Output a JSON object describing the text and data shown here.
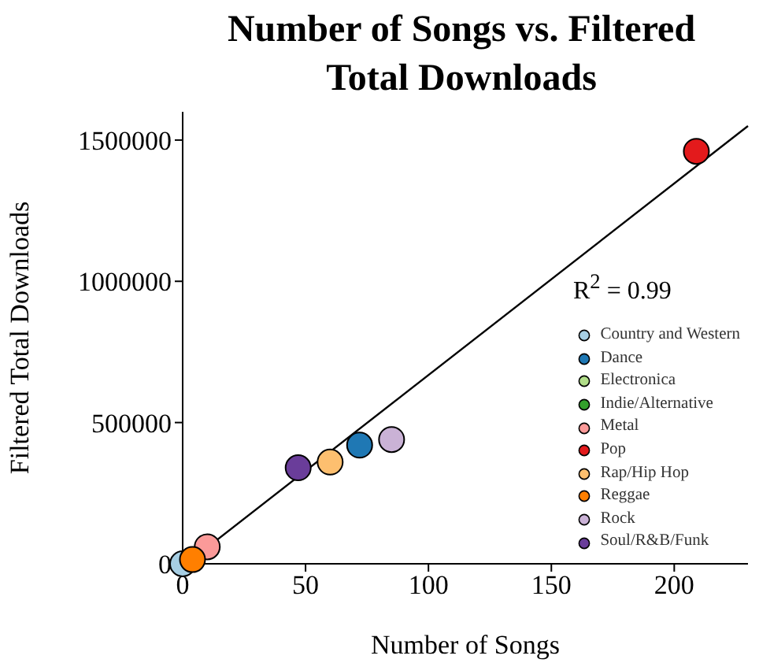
{
  "chart_data": {
    "type": "scatter",
    "title": "Number of Songs vs. Filtered Total Downloads",
    "xlabel": "Number of Songs",
    "ylabel": "Filtered Total Downloads",
    "annotations": [
      "R$^{2}$ = 0.99"
    ],
    "xlim": [
      0,
      230
    ],
    "xticks": [
      0,
      50,
      100,
      150,
      200
    ],
    "ylim": [
      0,
      1600000
    ],
    "yticks": [
      0,
      500000,
      1000000,
      1500000
    ],
    "legend": "bottom right",
    "marker": "circle",
    "series": [
      {
        "type": "line",
        "marker": "none",
        "color": "#000000",
        "x": [
          1.5,
          230
        ],
        "values": [
          0,
          1550000
        ]
      },
      {
        "name": "Country and Western",
        "color": "#a6cee3",
        "x": [
          0
        ],
        "values": [
          0
        ]
      },
      {
        "name": "Dance",
        "color": "#1f78b4",
        "x": [
          72
        ],
        "values": [
          420000
        ]
      },
      {
        "name": "Electronica",
        "color": "#b2df8a",
        "x": [
          null
        ],
        "values": [
          null
        ]
      },
      {
        "name": "Indie/Alternative",
        "color": "#33a02c",
        "x": [
          null
        ],
        "values": [
          null
        ]
      },
      {
        "name": "Metal",
        "color": "#fb9a99",
        "x": [
          10
        ],
        "values": [
          60000
        ]
      },
      {
        "name": "Pop",
        "color": "#e31a1c",
        "x": [
          209
        ],
        "values": [
          1460000
        ]
      },
      {
        "name": "Rap/Hip Hop",
        "color": "#fdbf6f",
        "x": [
          60
        ],
        "values": [
          360000
        ]
      },
      {
        "name": "Reggae",
        "color": "#ff7f00",
        "x": [
          4
        ],
        "values": [
          15000
        ]
      },
      {
        "name": "Rock",
        "color": "#cab2d6",
        "x": [
          85
        ],
        "values": [
          440000
        ]
      },
      {
        "name": "Soul/R&B/Funk",
        "color": "#6a3d9a",
        "x": [
          47
        ],
        "values": [
          340000
        ]
      }
    ]
  }
}
